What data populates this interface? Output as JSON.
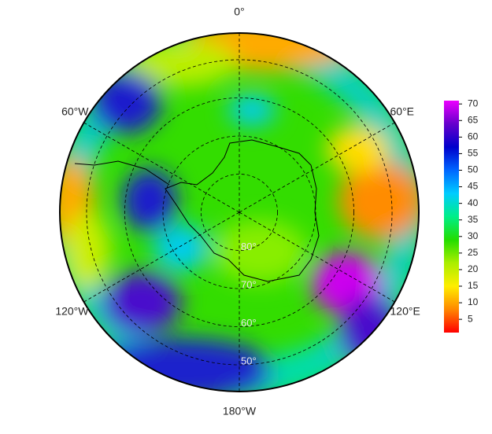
{
  "chart_data": {
    "type": "polar-map",
    "lon_labels": [
      {
        "value": 0,
        "label": "0°"
      },
      {
        "value": 60,
        "label": "60°E"
      },
      {
        "value": 120,
        "label": "120°E"
      },
      {
        "value": 180,
        "label": "180°W"
      },
      {
        "value": -120,
        "label": "120°W"
      },
      {
        "value": -60,
        "label": "60°W"
      }
    ],
    "lat_labels": [
      {
        "value": 80,
        "label": "80°"
      },
      {
        "value": 70,
        "label": "70°"
      },
      {
        "value": 60,
        "label": "60°"
      },
      {
        "value": 50,
        "label": "50°"
      }
    ],
    "latlim": [
      90,
      43
    ],
    "colorbar": {
      "lim": [
        1,
        71
      ],
      "ticks": [
        5,
        10,
        15,
        20,
        25,
        30,
        35,
        40,
        45,
        50,
        55,
        60,
        65,
        70
      ],
      "colors": [
        "#ff0000",
        "#ff8800",
        "#ffee00",
        "#aaee00",
        "#22dd00",
        "#00ee88",
        "#00ccff",
        "#0066ff",
        "#0000cc",
        "#6600cc",
        "#ee00ff"
      ]
    }
  }
}
